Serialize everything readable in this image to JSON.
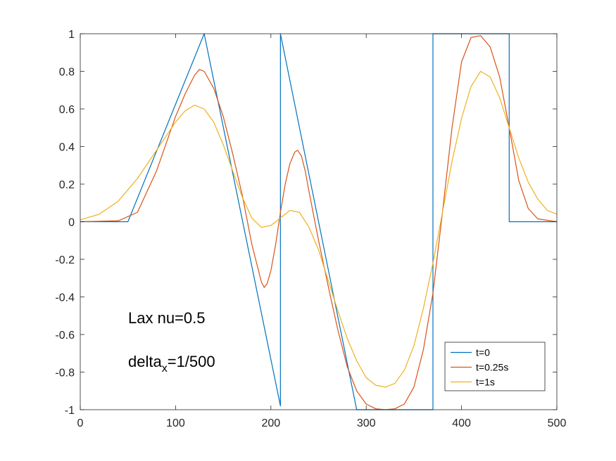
{
  "chart_data": {
    "type": "line",
    "xlim": [
      0,
      500
    ],
    "ylim": [
      -1,
      1
    ],
    "xticks": [
      0,
      100,
      200,
      300,
      400,
      500
    ],
    "yticks": [
      -1,
      -0.8,
      -0.6,
      -0.4,
      -0.2,
      0,
      0.2,
      0.4,
      0.6,
      0.8,
      1
    ],
    "xtick_labels": [
      "0",
      "100",
      "200",
      "300",
      "400",
      "500"
    ],
    "ytick_labels": [
      "-1",
      "-0.8",
      "-0.6",
      "-0.4",
      "-0.2",
      "0",
      "0.2",
      "0.4",
      "0.6",
      "0.8",
      "1"
    ],
    "grid": false,
    "legend_position": "bottom-right",
    "annotations": [
      {
        "text": "Lax nu=0.5"
      },
      {
        "text": "delta",
        "sub": "x",
        "suffix": "=1/500"
      }
    ],
    "series": [
      {
        "name": "t=0",
        "color": "#0072BD",
        "x": [
          0,
          50,
          130,
          210,
          210,
          290,
          370,
          370,
          450,
          450,
          500
        ],
        "y": [
          0,
          0,
          1,
          -0.98,
          1,
          -1,
          -1,
          1,
          1,
          0,
          0
        ]
      },
      {
        "name": "t=0.25s",
        "color": "#D95319",
        "x": [
          0,
          40,
          60,
          80,
          100,
          110,
          120,
          125,
          130,
          140,
          150,
          160,
          170,
          180,
          185,
          190,
          193,
          196,
          200,
          205,
          210,
          215,
          220,
          225,
          228,
          232,
          236,
          240,
          245,
          250,
          260,
          270,
          280,
          290,
          300,
          310,
          320,
          330,
          340,
          350,
          360,
          370,
          380,
          390,
          400,
          410,
          420,
          430,
          440,
          450,
          460,
          470,
          480,
          500
        ],
        "y": [
          0,
          0.005,
          0.05,
          0.27,
          0.56,
          0.68,
          0.78,
          0.81,
          0.8,
          0.71,
          0.56,
          0.36,
          0.14,
          -0.12,
          -0.22,
          -0.32,
          -0.35,
          -0.33,
          -0.26,
          -0.12,
          0.05,
          0.2,
          0.31,
          0.37,
          0.38,
          0.35,
          0.27,
          0.16,
          0.03,
          -0.1,
          -0.34,
          -0.57,
          -0.77,
          -0.9,
          -0.97,
          -0.995,
          -1,
          -0.995,
          -0.97,
          -0.88,
          -0.68,
          -0.38,
          0.05,
          0.5,
          0.85,
          0.98,
          0.99,
          0.93,
          0.77,
          0.5,
          0.22,
          0.07,
          0.015,
          0
        ]
      },
      {
        "name": "t=1s",
        "color": "#EDB120",
        "x": [
          0,
          20,
          40,
          60,
          80,
          100,
          110,
          120,
          130,
          140,
          150,
          160,
          170,
          180,
          190,
          200,
          210,
          220,
          230,
          240,
          250,
          260,
          270,
          280,
          290,
          300,
          310,
          320,
          330,
          340,
          350,
          360,
          370,
          380,
          390,
          400,
          410,
          420,
          430,
          440,
          450,
          460,
          470,
          480,
          490,
          500
        ],
        "y": [
          0.01,
          0.04,
          0.11,
          0.23,
          0.38,
          0.53,
          0.59,
          0.62,
          0.6,
          0.53,
          0.41,
          0.27,
          0.13,
          0.02,
          -0.03,
          -0.02,
          0.02,
          0.06,
          0.05,
          -0.03,
          -0.15,
          -0.31,
          -0.47,
          -0.62,
          -0.74,
          -0.83,
          -0.87,
          -0.88,
          -0.86,
          -0.79,
          -0.66,
          -0.46,
          -0.22,
          0.05,
          0.32,
          0.55,
          0.72,
          0.8,
          0.77,
          0.66,
          0.5,
          0.34,
          0.21,
          0.12,
          0.06,
          0.04
        ]
      }
    ]
  }
}
